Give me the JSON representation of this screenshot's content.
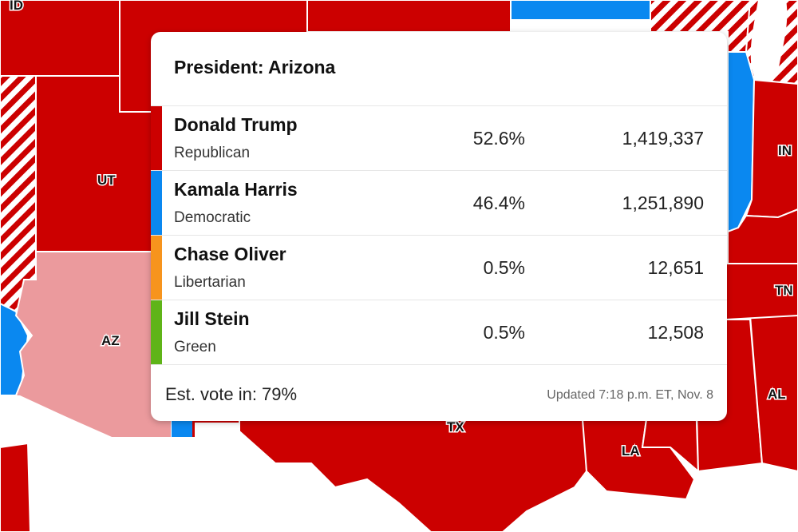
{
  "colors": {
    "republican": "#cc0000",
    "democratic": "#0a88f0",
    "libertarian": "#f7941d",
    "green": "#5fb418",
    "leaning_republican": "#eb9a9d"
  },
  "map": {
    "state_labels": [
      "ID",
      "UT",
      "AZ",
      "IN",
      "TN",
      "AL",
      "LA",
      "TX"
    ]
  },
  "popup": {
    "title": "President: Arizona",
    "candidates": [
      {
        "name": "Donald Trump",
        "party": "Republican",
        "percent": "52.6%",
        "votes": "1,419,337"
      },
      {
        "name": "Kamala Harris",
        "party": "Democratic",
        "percent": "46.4%",
        "votes": "1,251,890"
      },
      {
        "name": "Chase Oliver",
        "party": "Libertarian",
        "percent": "0.5%",
        "votes": "12,651"
      },
      {
        "name": "Jill Stein",
        "party": "Green",
        "percent": "0.5%",
        "votes": "12,508"
      }
    ],
    "est_vote": "Est. vote in: 79%",
    "updated": "Updated 7:18 p.m. ET, Nov. 8"
  }
}
